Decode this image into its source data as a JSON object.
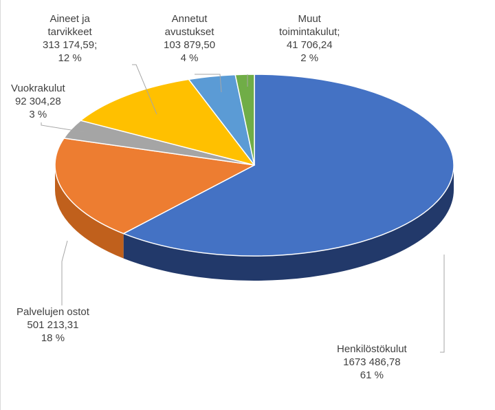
{
  "chart_data": {
    "type": "pie",
    "title": "",
    "three_d": true,
    "legend": "none",
    "slices": [
      {
        "category": "Henkilöstökulut",
        "value_text": "1673 486,78",
        "value": 1673486.78,
        "percent_text": "61 %",
        "color": "#4472C4",
        "side_color": "#22396A"
      },
      {
        "category": "Palvelujen ostot",
        "value_text": "501 213,31",
        "value": 501213.31,
        "percent_text": "18 %",
        "color": "#ED7D31",
        "side_color": "#C0601C"
      },
      {
        "category": "Vuokrakulut",
        "value_text": "92 304,28",
        "value": 92304.28,
        "percent_text": "3 %",
        "color": "#A5A5A5",
        "side_color": "#7F7F7F"
      },
      {
        "category": "Aineet ja tarvikkeet",
        "value_text": "313 174,59;",
        "value": 313174.59,
        "percent_text": "12 %",
        "color": "#FFC000",
        "side_color": "#C99700"
      },
      {
        "category": "Annetut avustukset",
        "value_text": "103 879,50",
        "value": 103879.5,
        "percent_text": "4 %",
        "color": "#5B9BD5",
        "side_color": "#2E6DA4"
      },
      {
        "category": "Muut toimintakulut;",
        "value_text": "41 706,24",
        "value": 41706.24,
        "percent_text": "2 %",
        "color": "#70AD47",
        "side_color": "#4E7A31"
      }
    ]
  },
  "labels": {
    "henkilosto": {
      "line1": "Henkilöstökulut",
      "line2": "1673 486,78",
      "line3": "61 %"
    },
    "palvelut": {
      "line1": "Palvelujen ostot",
      "line2": "501 213,31",
      "line3": "18 %"
    },
    "vuokra": {
      "line1": "Vuokrakulut",
      "line2": "92 304,28",
      "line3": "3 %"
    },
    "aineet": {
      "line1": "Aineet ja",
      "line2": "tarvikkeet",
      "line3": "313 174,59;",
      "line4": "12 %"
    },
    "avustukset": {
      "line1": "Annetut",
      "line2": "avustukset",
      "line3": "103 879,50",
      "line4": "4 %"
    },
    "muut": {
      "line1": "Muut",
      "line2": "toimintakulut;",
      "line3": "41 706,24",
      "line4": "2 %"
    }
  }
}
